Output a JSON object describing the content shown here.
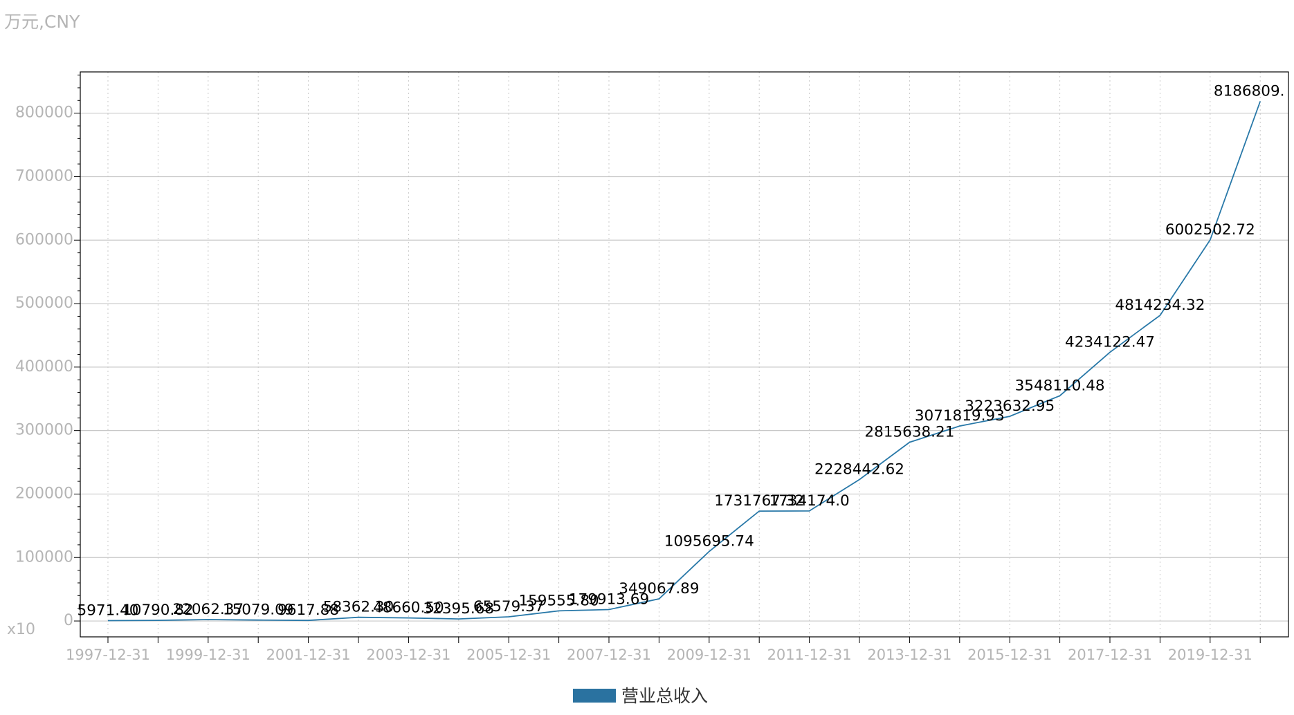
{
  "chart_data": {
    "type": "line",
    "unit_label": "万元,CNY",
    "scale_label": "x10",
    "x": [
      "1997-12-31",
      "1998-12-31",
      "1999-12-31",
      "2000-12-31",
      "2001-12-31",
      "2002-12-31",
      "2003-12-31",
      "2004-12-31",
      "2005-12-31",
      "2006-12-31",
      "2007-12-31",
      "2008-12-31",
      "2009-12-31",
      "2010-12-31",
      "2011-12-31",
      "2012-12-31",
      "2013-12-31",
      "2014-12-31",
      "2015-12-31",
      "2016-12-31",
      "2017-12-31",
      "2018-12-31",
      "2019-12-31",
      "2020-12-31"
    ],
    "xtick_labels": [
      "1997-12-31",
      "1999-12-31",
      "2001-12-31",
      "2003-12-31",
      "2005-12-31",
      "2007-12-31",
      "2009-12-31",
      "2011-12-31",
      "2013-12-31",
      "2015-12-31",
      "2017-12-31",
      "2019-12-31"
    ],
    "ylim": [
      -25000,
      865000
    ],
    "yticks": [
      0,
      100000,
      200000,
      300000,
      400000,
      500000,
      600000,
      700000,
      800000
    ],
    "grid": true,
    "legend_placement": "bottom",
    "series": [
      {
        "name": "营业总收入",
        "color": "#2878a8",
        "values": [
          597.14,
          1079.08,
          2206.24,
          1507.91,
          961.79,
          5836.23,
          4866.05,
          3239.57,
          6557.94,
          15955.58,
          17991.37,
          34906.79,
          109569.57,
          173176.73,
          173417.4,
          222844.26,
          281563.82,
          307181.99,
          322363.3,
          354811.05,
          423412.25,
          481423.43,
          600250.27,
          818680.9
        ],
        "labels": [
          "5971.40",
          "10790.82",
          "22062.37",
          "15079.09",
          "9617.88",
          "58362.30",
          "48660.50",
          "32395.68",
          "65579.37",
          "159555.80",
          "179913.69",
          "349067.89",
          "1095695.74",
          "1731767.32",
          "1734174.0",
          "2228442.62",
          "2815638.21",
          "3071819.93",
          "3223632.95",
          "3548110.48",
          "4234122.47",
          "4814234.32",
          "6002502.72",
          "8186809."
        ]
      }
    ]
  }
}
